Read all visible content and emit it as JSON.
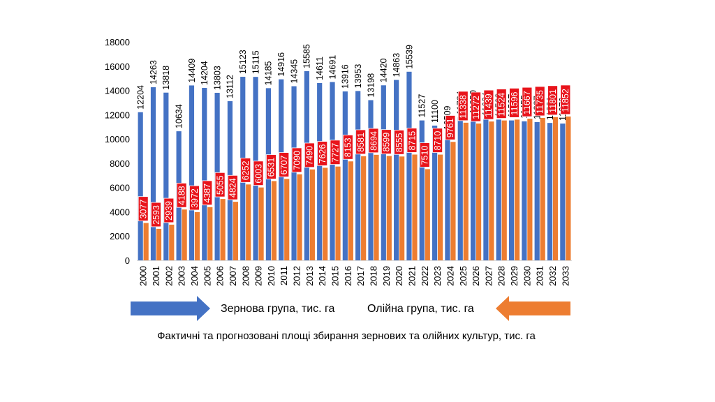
{
  "colors": {
    "grain": "#4472C4",
    "oil": "#ED7D31",
    "label_bg": "#E8141B",
    "axis": "#D9D9D9"
  },
  "legend": {
    "grain": "Зернова група, тис. га",
    "oil": "Олійна група, тис. га"
  },
  "caption": "Фактичні та прогнозовані площі збирання зернових та олійних культур, тис. га",
  "chart_data": {
    "type": "bar",
    "categories": [
      "2000",
      "2001",
      "2002",
      "2003",
      "2004",
      "2005",
      "2006",
      "2007",
      "2008",
      "2009",
      "2010",
      "2011",
      "2012",
      "2013",
      "2014",
      "2015",
      "2016",
      "2017",
      "2018",
      "2019",
      "2020",
      "2021",
      "2022",
      "2023",
      "2024",
      "2025",
      "2026",
      "2027",
      "2028",
      "2029",
      "2030",
      "2031",
      "2032",
      "2033"
    ],
    "series": [
      {
        "name": "Зернова група, тис. га",
        "values": [
          12204,
          14263,
          13818,
          10634,
          14409,
          14204,
          13803,
          13112,
          15123,
          15115,
          14185,
          14916,
          14345,
          15585,
          14611,
          14691,
          13916,
          13953,
          13198,
          14420,
          14863,
          15539,
          11527,
          11100,
          10509,
          11784,
          11850,
          11684,
          11598,
          11527,
          11455,
          11387,
          11321,
          11270
        ]
      },
      {
        "name": "Олійна група, тис. га",
        "values": [
          3077,
          2593,
          2939,
          4188,
          3972,
          4387,
          5055,
          4824,
          6252,
          6003,
          6531,
          6707,
          7090,
          7490,
          7626,
          7727,
          8153,
          8581,
          8694,
          8599,
          8555,
          8715,
          7510,
          8710,
          9761,
          11338,
          11272,
          11439,
          11524,
          11596,
          11667,
          11735,
          11801,
          11852
        ]
      }
    ],
    "yticks": [
      0,
      2000,
      4000,
      6000,
      8000,
      10000,
      12000,
      14000,
      16000,
      18000
    ],
    "ylim": [
      0,
      18000
    ],
    "legend_position": "bottom"
  }
}
